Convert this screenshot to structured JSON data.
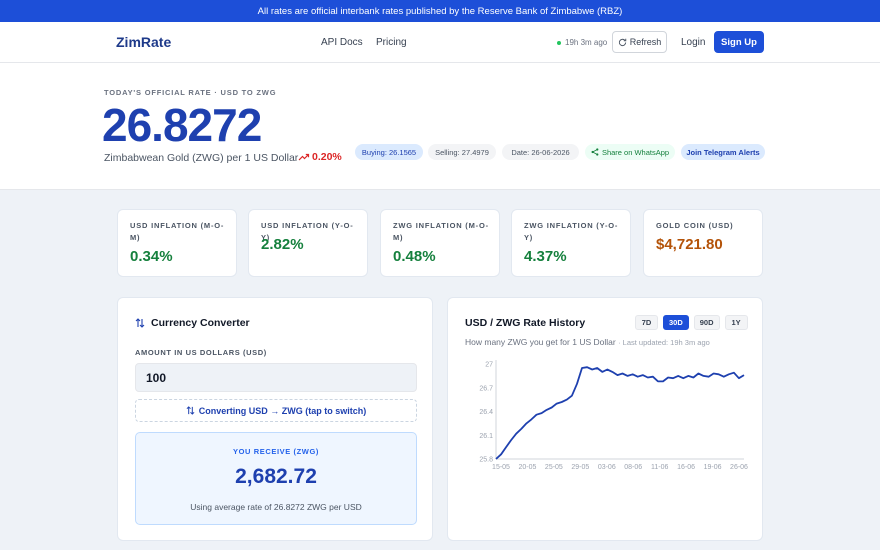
{
  "banner": {
    "text": "All rates are official interbank rates published by the Reserve Bank of Zimbabwe (RBZ)"
  },
  "nav": {
    "logo": "ZimRate",
    "links": [
      "API Docs",
      "Pricing"
    ],
    "status": "19h 3m ago",
    "refresh": "Refresh",
    "login": "Login",
    "signup": "Sign Up"
  },
  "hero": {
    "caption": "TODAY'S OFFICIAL RATE · USD TO ZWG",
    "rate": "26.8272",
    "subtitle": "Zimbabwean Gold (ZWG) per 1 US Dollar",
    "change": "0.20%",
    "buying": "Buying: 26.1565",
    "selling": "Selling: 27.4979",
    "date": "Date: 26-06-2026",
    "whatsapp": "Share on WhatsApp",
    "telegram": "Join Telegram Alerts"
  },
  "stats": [
    {
      "label": "USD INFLATION (M-O-M)",
      "value": "0.34%"
    },
    {
      "label": "USD INFLATION (Y-O-Y)",
      "value": "2.82%"
    },
    {
      "label": "ZWG INFLATION (M-O-M)",
      "value": "0.48%"
    },
    {
      "label": "ZWG INFLATION (Y-O-Y)",
      "value": "4.37%"
    },
    {
      "label": "GOLD COIN (USD)",
      "value": "$4,721.80"
    }
  ],
  "converter": {
    "title": "Currency Converter",
    "amount_label": "AMOUNT IN US DOLLARS (USD)",
    "amount_value": "100",
    "switch_label": "Converting USD → ZWG (tap to switch)",
    "result_label": "YOU RECEIVE (ZWG)",
    "result_value": "2,682.72",
    "result_note": "Using average rate of 26.8272 ZWG per USD"
  },
  "history": {
    "title": "USD / ZWG Rate History",
    "ranges": [
      "7D",
      "30D",
      "90D",
      "1Y"
    ],
    "active_range": "30D",
    "subtitle": "How many ZWG you get for 1 US Dollar",
    "updated": "· Last updated: 19h 3m ago"
  },
  "colors": {
    "accent": "#1d4fd8",
    "positive": "#15803d",
    "negative": "#dc2626",
    "gold": "#b45309"
  },
  "chart_data": {
    "type": "line",
    "yticks": [
      25.8,
      26.1,
      26.4,
      26.7,
      27
    ],
    "ylim": [
      25.8,
      27
    ],
    "xticks": [
      "15-05",
      "20-05",
      "25-05",
      "29-05",
      "03-06",
      "08-06",
      "11-06",
      "16-06",
      "19-06",
      "26-06"
    ],
    "series": [
      {
        "values": [
          25.8,
          25.86,
          25.95,
          26.04,
          26.12,
          26.18,
          26.25,
          26.3,
          26.36,
          26.38,
          26.42,
          26.45,
          26.5,
          26.52,
          26.55,
          26.6,
          26.75,
          26.95,
          26.96,
          26.93,
          26.95,
          26.9,
          26.93,
          26.9,
          26.86,
          26.88,
          26.85,
          26.87,
          26.84,
          26.86,
          26.83,
          26.84,
          26.78,
          26.78,
          26.83,
          26.82,
          26.85,
          26.82,
          26.85,
          26.83,
          26.88,
          26.85,
          26.84,
          26.88,
          26.87,
          26.84,
          26.87,
          26.89,
          26.82,
          26.86
        ]
      }
    ]
  }
}
